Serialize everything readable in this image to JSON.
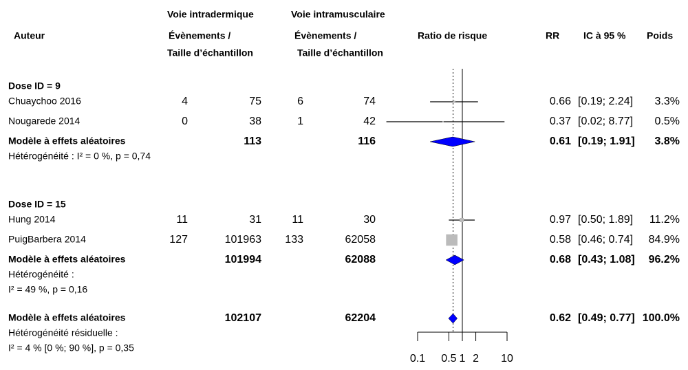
{
  "chart_data": {
    "type": "forest",
    "headers": {
      "author": "Auteur",
      "id_route": "Voie intradermique",
      "im_route": "Voie intramusculaire",
      "id_events": "Évènements /",
      "id_size": "Taille d’échantillon",
      "im_events": "Évènements /",
      "im_size": "Taille d’échantillon",
      "plot": "Ratio de risque",
      "rr": "RR",
      "ci": "IC à 95 %",
      "weight": "Poids"
    },
    "groups": [
      {
        "label": "Dose ID = 9",
        "studies": [
          {
            "name": "Chuaychoo 2016",
            "id_events": 4,
            "id_n": 75,
            "im_events": 6,
            "im_n": 74,
            "rr": 0.66,
            "ci": [
              0.19,
              2.24
            ],
            "ci_label": "[0.19; 2.24]",
            "weight": 3.3,
            "weight_label": "3.3%"
          },
          {
            "name": "Nougarede 2014",
            "id_events": 0,
            "id_n": 38,
            "im_events": 1,
            "im_n": 42,
            "rr": 0.37,
            "ci": [
              0.02,
              8.77
            ],
            "ci_label": "[0.02; 8.77]",
            "weight": 0.5,
            "weight_label": "0.5%"
          }
        ],
        "pooled": {
          "label": "Modèle à effets aléatoires",
          "id_n": 113,
          "im_n": 116,
          "rr": 0.61,
          "ci": [
            0.19,
            1.91
          ],
          "ci_label": "[0.19; 1.91]",
          "weight": 3.8,
          "weight_label": "3.8%"
        },
        "heterogeneity": [
          "Hétérogénéité : I² = 0 %, p = 0,74"
        ]
      },
      {
        "label": "Dose ID = 15",
        "studies": [
          {
            "name": "Hung 2014",
            "id_events": 11,
            "id_n": 31,
            "im_events": 11,
            "im_n": 30,
            "rr": 0.97,
            "ci": [
              0.5,
              1.89
            ],
            "ci_label": "[0.50; 1.89]",
            "weight": 11.2,
            "weight_label": "11.2%"
          },
          {
            "name": "PuigBarbera 2014",
            "id_events": 127,
            "id_n": 101963,
            "im_events": 133,
            "im_n": 62058,
            "rr": 0.58,
            "ci": [
              0.46,
              0.74
            ],
            "ci_label": "[0.46; 0.74]",
            "weight": 84.9,
            "weight_label": "84.9%"
          }
        ],
        "pooled": {
          "label": "Modèle à effets aléatoires",
          "id_n": 101994,
          "im_n": 62088,
          "rr": 0.68,
          "ci": [
            0.43,
            1.08
          ],
          "ci_label": "[0.43; 1.08]",
          "weight": 96.2,
          "weight_label": "96.2%"
        },
        "heterogeneity": [
          "Hétérogénéité :",
          "I² = 49 %, p = 0,16"
        ]
      }
    ],
    "overall": {
      "label": "Modèle à effets aléatoires",
      "id_n": 102107,
      "im_n": 62204,
      "rr": 0.62,
      "ci": [
        0.49,
        0.77
      ],
      "ci_label": "[0.49; 0.77]",
      "weight": 100.0,
      "weight_label": "100.0%",
      "heterogeneity": [
        "Hétérogénéité résiduelle :",
        "I² = 4 % [0 %; 90 %], p = 0,35"
      ]
    },
    "xlim": [
      0.1,
      10
    ],
    "xticks": [
      0.1,
      0.5,
      1,
      2,
      10
    ],
    "log_x": true,
    "reference": 1,
    "square_color": "#bbbbbb",
    "diamond_color": "#0000ff"
  }
}
